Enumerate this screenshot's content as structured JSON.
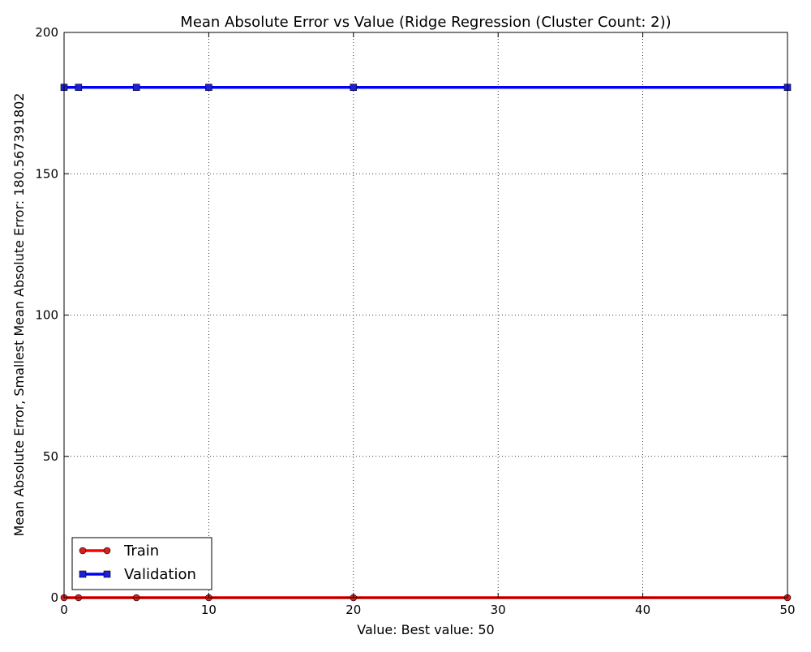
{
  "chart_data": {
    "type": "line",
    "title": "Mean Absolute Error vs Value (Ridge Regression (Cluster Count: 2))",
    "xlabel": "Value: Best value: 50",
    "ylabel": "Mean Absolute Error, Smallest Mean Absolute Error: 180.567391802",
    "xlim": [
      0,
      50
    ],
    "ylim": [
      0,
      200
    ],
    "x_ticks": [
      0,
      10,
      20,
      30,
      40,
      50
    ],
    "y_ticks": [
      0,
      50,
      100,
      150,
      200
    ],
    "x_tick_labels": [
      "0",
      "10",
      "20",
      "30",
      "40",
      "50"
    ],
    "y_tick_labels": [
      "0",
      "50",
      "100",
      "150",
      "200"
    ],
    "grid": true,
    "grid_style": "dotted",
    "legend_position": "lower-left",
    "series": [
      {
        "name": "Train",
        "color": "#ff0000",
        "marker": "circle",
        "marker_color": "#d62020",
        "x": [
          0,
          1,
          5,
          10,
          20,
          50
        ],
        "y": [
          0,
          0,
          0,
          0,
          0,
          0
        ]
      },
      {
        "name": "Validation",
        "color": "#0000ff",
        "marker": "square",
        "marker_color": "#1f1fd6",
        "x": [
          0,
          1,
          5,
          10,
          20,
          50
        ],
        "y": [
          180.567391802,
          180.567391802,
          180.567391802,
          180.567391802,
          180.567391802,
          180.567391802
        ]
      }
    ]
  }
}
